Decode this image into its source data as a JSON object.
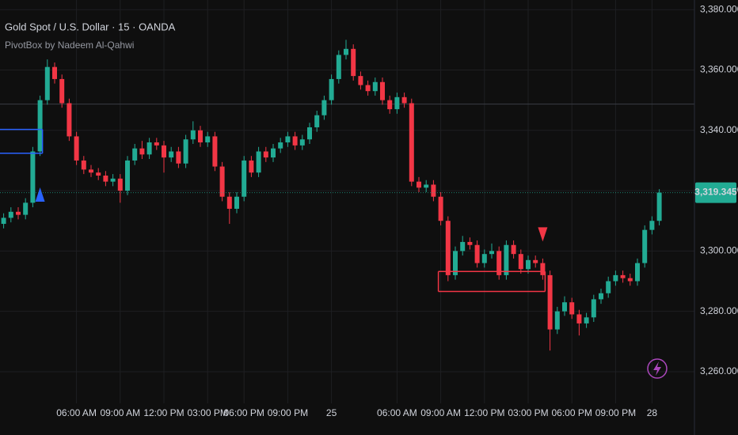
{
  "chart_data": {
    "type": "candlestick",
    "title": "Gold Spot / U.S. Dollar · 15 · OANDA",
    "subtitle": "PivotBox by Nadeem Al-Qahwi",
    "up_color": "#22ab94",
    "down_color": "#f23645",
    "grid": true,
    "categories": [
      null,
      null,
      null,
      null,
      null,
      null,
      null,
      null,
      null,
      null,
      "06:00 AM",
      null,
      null,
      null,
      null,
      null,
      "09:00 AM",
      null,
      null,
      null,
      null,
      null,
      "12:00 PM",
      null,
      null,
      null,
      null,
      null,
      "03:00 PM",
      null,
      null,
      null,
      null,
      "06:00 PM",
      null,
      null,
      null,
      null,
      null,
      "09:00 PM",
      null,
      null,
      null,
      null,
      null,
      "25",
      null,
      null,
      null,
      null,
      null,
      null,
      null,
      null,
      "06:00 AM",
      null,
      null,
      null,
      null,
      null,
      "09:00 AM",
      null,
      null,
      null,
      null,
      null,
      "12:00 PM",
      null,
      null,
      null,
      null,
      null,
      "03:00 PM",
      null,
      null,
      null,
      null,
      null,
      "06:00 PM",
      null,
      null,
      null,
      null,
      null,
      "09:00 PM",
      null,
      null,
      null,
      null,
      "28",
      null
    ],
    "open": [
      3309,
      3311,
      3313,
      3312,
      3316,
      3333,
      3350,
      3361,
      3357,
      3349,
      3338,
      3330,
      3327,
      3326,
      3325,
      3323,
      3324,
      3320,
      3330,
      3334,
      3332,
      3336,
      3335,
      3331,
      3333,
      3329,
      3337,
      3340,
      3336,
      3338,
      3328,
      3318,
      3314,
      3318,
      3330,
      3326,
      3333,
      3331,
      3334,
      3336,
      3338,
      3335,
      3337,
      3341,
      3345,
      3350,
      3357,
      3365,
      3367,
      3358,
      3355,
      3353,
      3356,
      3350,
      3347,
      3351,
      3349,
      3323,
      3321,
      3322,
      3318,
      3310,
      3292,
      3300,
      3303,
      3302,
      3296,
      3299,
      3300,
      3292,
      3302,
      3299,
      3294,
      3297,
      3296,
      3292,
      3274,
      3280,
      3283,
      3279,
      3276,
      3278,
      3284,
      3286,
      3290,
      3292,
      3291,
      3290,
      3296,
      3307,
      3310
    ],
    "high": [
      3312.5,
      3314.5,
      3314.5,
      3317.5,
      3334.5,
      3351.5,
      3363.5,
      3362.5,
      3358.5,
      3350.5,
      3339.5,
      3331.5,
      3328.5,
      3327.5,
      3326.5,
      3325.5,
      3325.5,
      3331.5,
      3335.5,
      3336.5,
      3337.5,
      3337.5,
      3336.5,
      3334.5,
      3334.5,
      3338.5,
      3343,
      3341.5,
      3339.5,
      3339.5,
      3329.5,
      3319.5,
      3319.5,
      3331.5,
      3331.5,
      3334.5,
      3334.5,
      3335.5,
      3337.5,
      3339.5,
      3339.5,
      3338.5,
      3342.5,
      3346.5,
      3351.5,
      3358.5,
      3366.5,
      3370,
      3368.5,
      3359.5,
      3356.5,
      3357.5,
      3357.5,
      3351.5,
      3352.5,
      3352.5,
      3350.5,
      3324.5,
      3323.5,
      3323.5,
      3319.5,
      3311.5,
      3301.5,
      3305,
      3304.5,
      3303.5,
      3300.5,
      3302.5,
      3301.5,
      3303.5,
      3303.5,
      3300.5,
      3298.5,
      3298.5,
      3297.5,
      3293.5,
      3281.5,
      3285,
      3284.5,
      3280.5,
      3279.5,
      3285.5,
      3287.5,
      3291.5,
      3293.5,
      3293.5,
      3292.5,
      3297.5,
      3308.5,
      3311.5,
      3320.5
    ],
    "low": [
      3307.5,
      3309.5,
      3310.5,
      3310.5,
      3314.5,
      3331.5,
      3348.5,
      3355.5,
      3347.5,
      3336.5,
      3328.5,
      3325.5,
      3324.5,
      3323.5,
      3321.5,
      3321.5,
      3316,
      3318.5,
      3328.5,
      3330.5,
      3330.5,
      3333.5,
      3326,
      3329.5,
      3327.5,
      3327.5,
      3335.5,
      3334.5,
      3334.5,
      3326.5,
      3316.5,
      3309,
      3312.5,
      3316.5,
      3324.5,
      3324.5,
      3329.5,
      3329.5,
      3332.5,
      3334.5,
      3333.5,
      3333.5,
      3335.5,
      3339.5,
      3343.5,
      3348.5,
      3355.5,
      3363.5,
      3356.5,
      3353.5,
      3351.5,
      3351.5,
      3348.5,
      3345.5,
      3345.5,
      3347.5,
      3321.5,
      3319.5,
      3319.5,
      3316.5,
      3308.5,
      3290,
      3290.5,
      3298.5,
      3300.5,
      3294.5,
      3294.5,
      3297.5,
      3290.5,
      3290.5,
      3297.5,
      3292.5,
      3292.5,
      3294.5,
      3290.5,
      3267,
      3272.5,
      3278.5,
      3277.5,
      3272,
      3274.5,
      3276.5,
      3282.5,
      3284.5,
      3288.5,
      3289.5,
      3288.5,
      3288.5,
      3294.5,
      3305.5,
      3308.5
    ],
    "close": [
      3311,
      3313,
      3312,
      3316,
      3333,
      3350,
      3361,
      3357,
      3349,
      3338,
      3330,
      3327,
      3326,
      3325,
      3323,
      3324,
      3320,
      3330,
      3334,
      3332,
      3336,
      3335,
      3331,
      3333,
      3329,
      3337,
      3340,
      3336,
      3338,
      3328,
      3318,
      3314,
      3318,
      3330,
      3326,
      3333,
      3331,
      3334,
      3336,
      3338,
      3335,
      3337,
      3341,
      3345,
      3350,
      3357,
      3365,
      3367,
      3358,
      3355,
      3353,
      3356,
      3350,
      3347,
      3351,
      3349,
      3323,
      3321,
      3322,
      3318,
      3310,
      3292,
      3300,
      3303,
      3302,
      3296,
      3299,
      3300,
      3292,
      3302,
      3299,
      3294,
      3297,
      3296,
      3292,
      3274,
      3280,
      3283,
      3279,
      3276,
      3278,
      3284,
      3286,
      3290,
      3292,
      3291,
      3290,
      3296,
      3307,
      3310,
      3319.345
    ],
    "last_price_label": "3,319.345",
    "ylim": [
      3249.5,
      3383.2
    ],
    "yticks": [
      {
        "value": 3260,
        "label": "3,260.000"
      },
      {
        "value": 3280,
        "label": "3,280.000"
      },
      {
        "value": 3300,
        "label": "3,300.000"
      },
      {
        "value": 3320,
        "label": "3,320.000"
      },
      {
        "value": 3340,
        "label": "3,340.000"
      },
      {
        "value": 3360,
        "label": "3,360.000"
      },
      {
        "value": 3380,
        "label": "3,380.000"
      }
    ],
    "hlines": [
      {
        "value": 3348.7,
        "color": "#3a3d45"
      }
    ],
    "boxes": [
      {
        "color": "#2962ff",
        "high": 3340.3,
        "low": 3332.4,
        "start": 0,
        "end": 5
      },
      {
        "color": "#f23645",
        "high": 3293.2,
        "low": 3286.6,
        "start": 60,
        "end": 74
      }
    ],
    "markers": [
      {
        "direction": "up",
        "index": 5,
        "price": 3318.7,
        "color": "#2962ff"
      },
      {
        "direction": "down",
        "index": 74,
        "price": 3305.5,
        "color": "#f23645"
      }
    ]
  }
}
